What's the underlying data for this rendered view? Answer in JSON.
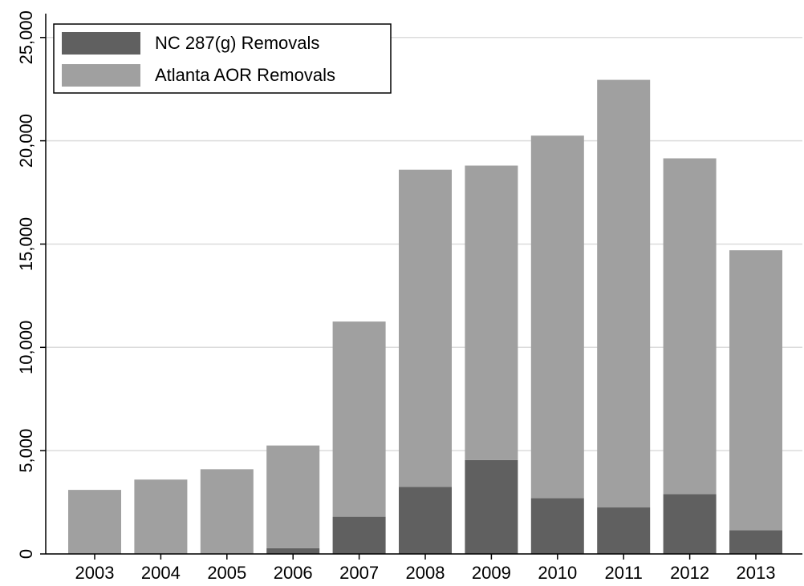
{
  "chart_data": {
    "type": "stacked-bar",
    "categories": [
      "2003",
      "2004",
      "2005",
      "2006",
      "2007",
      "2008",
      "2009",
      "2010",
      "2011",
      "2012",
      "2013"
    ],
    "series": [
      {
        "name": "NC 287(g) Removals",
        "color": "#606060",
        "values": [
          0,
          0,
          0,
          280,
          1800,
          3250,
          4550,
          2700,
          2250,
          2900,
          1150
        ]
      },
      {
        "name": "Atlanta AOR Removals",
        "color": "#a0a0a0",
        "values": [
          3100,
          3600,
          4100,
          4970,
          9450,
          15350,
          14250,
          17550,
          20700,
          16250,
          13550
        ]
      }
    ],
    "ylim": [
      0,
      26000
    ],
    "yticks": [
      0,
      {
        "value": 5000,
        "label": "5,000"
      },
      {
        "value": 10000,
        "label": "10,000"
      },
      {
        "value": 15000,
        "label": "15,000"
      },
      {
        "value": 20000,
        "label": "20,000"
      },
      {
        "value": 25000,
        "label": "25,000"
      }
    ],
    "grid": true,
    "legend": "top-left"
  }
}
